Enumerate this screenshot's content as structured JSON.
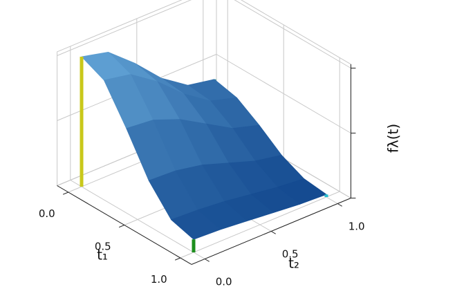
{
  "chart_data": {
    "type": "surface",
    "xlabel": "t₁",
    "ylabel": "t₂",
    "zlabel": "fλ(t)",
    "x": [
      0,
      0.2,
      0.4,
      0.6,
      0.8,
      1.0
    ],
    "y": [
      0,
      0.2,
      0.4,
      0.6,
      0.8,
      1.0
    ],
    "z": [
      [
        1.0,
        0.95,
        0.78,
        0.58,
        0.44,
        0.4
      ],
      [
        0.92,
        0.88,
        0.74,
        0.56,
        0.42,
        0.36
      ],
      [
        0.65,
        0.63,
        0.55,
        0.43,
        0.31,
        0.25
      ],
      [
        0.35,
        0.34,
        0.3,
        0.23,
        0.16,
        0.12
      ],
      [
        0.15,
        0.14,
        0.12,
        0.09,
        0.06,
        0.04
      ],
      [
        0.1,
        0.09,
        0.07,
        0.05,
        0.03,
        0.02
      ]
    ],
    "xlim": [
      0,
      1
    ],
    "ylim": [
      0,
      1
    ],
    "zlim": [
      0,
      1
    ],
    "xticks": [
      {
        "value": 0,
        "label": "0.0"
      },
      0.5,
      {
        "value": 1,
        "label": "1.0"
      }
    ],
    "yticks": [
      {
        "value": 0,
        "label": "0.0"
      },
      0.5,
      {
        "value": 1,
        "label": "1.0"
      }
    ],
    "zticks": [
      0,
      0.5,
      1
    ],
    "grid": true,
    "markers": [
      {
        "x": 0,
        "y": 0,
        "value": 1.0,
        "color": "#c9c81a"
      },
      {
        "x": 1,
        "y": 0,
        "value": 0.1,
        "color": "#1d8f1d"
      },
      {
        "x": 1,
        "y": 1,
        "value": 0.02,
        "color": "#27bfd0"
      },
      {
        "x": 0,
        "y": 1,
        "value": 0.4,
        "color": "#0b8f7d"
      }
    ]
  }
}
